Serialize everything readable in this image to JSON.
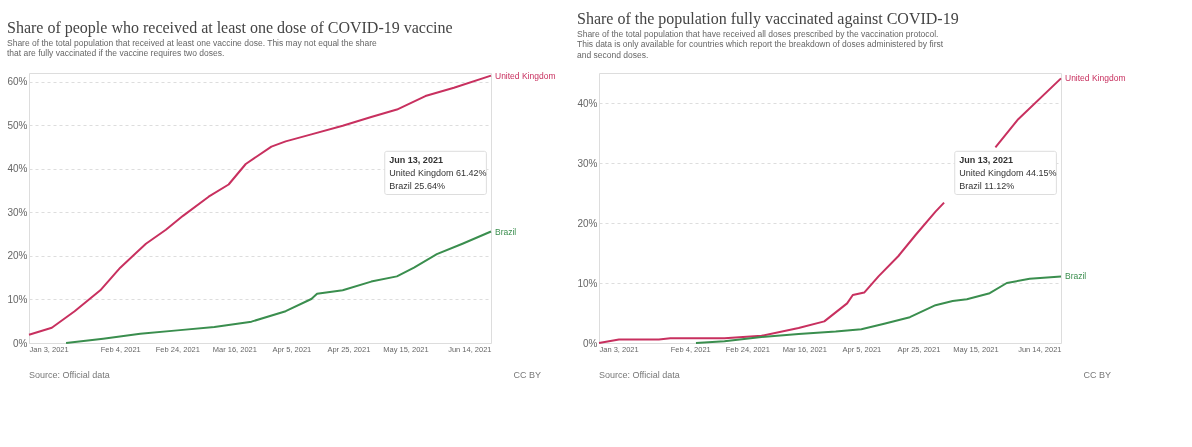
{
  "chart_data": [
    {
      "type": "line",
      "title": "Share of people who received at least one dose of COVID-19 vaccine",
      "subtitle": "Share of the total population that received at least one vaccine dose. This may not equal the share that are fully vaccinated if the vaccine requires two doses.",
      "series": [
        {
          "name": "United Kingdom",
          "color": "#c8305f",
          "x": [
            "2021-01-03",
            "2021-01-11",
            "2021-01-19",
            "2021-01-28",
            "2021-02-04",
            "2021-02-13",
            "2021-02-20",
            "2021-02-26",
            "2021-03-07",
            "2021-03-14",
            "2021-03-20",
            "2021-03-29",
            "2021-04-03",
            "2021-04-12",
            "2021-04-23",
            "2021-05-03",
            "2021-05-12",
            "2021-05-22",
            "2021-06-01",
            "2021-06-14"
          ],
          "values": [
            1.9,
            3.5,
            7.3,
            12.1,
            17.3,
            22.8,
            26,
            29.2,
            33.6,
            36.4,
            41.1,
            45.1,
            46.3,
            47.9,
            49.9,
            51.9,
            53.6,
            56.7,
            58.6,
            61.4
          ]
        },
        {
          "name": "Brazil",
          "color": "#3a8e4e",
          "x": [
            "2021-01-16",
            "2021-01-29",
            "2021-02-11",
            "2021-02-24",
            "2021-03-09",
            "2021-03-22",
            "2021-04-03",
            "2021-04-12",
            "2021-04-14",
            "2021-04-23",
            "2021-05-03",
            "2021-05-12",
            "2021-05-18",
            "2021-05-26",
            "2021-06-04",
            "2021-06-14"
          ],
          "values": [
            0,
            1.0,
            2.1,
            2.9,
            3.7,
            4.9,
            7.3,
            10.1,
            11.3,
            12.1,
            14.1,
            15.3,
            17.3,
            20.4,
            22.8,
            25.6
          ]
        }
      ],
      "xlim": [
        "2021-01-03",
        "2021-06-14"
      ],
      "xticks": [
        {
          "value": "2021-01-03",
          "label": "Jan 3, 2021"
        },
        {
          "value": "2021-02-04",
          "label": "Feb 4, 2021"
        },
        {
          "value": "2021-02-24",
          "label": "Feb 24, 2021"
        },
        {
          "value": "2021-03-16",
          "label": "Mar 16, 2021"
        },
        {
          "value": "2021-04-05",
          "label": "Apr 5, 2021"
        },
        {
          "value": "2021-04-25",
          "label": "Apr 25, 2021"
        },
        {
          "value": "2021-05-15",
          "label": "May 15, 2021"
        },
        {
          "value": "2021-06-14",
          "label": "Jun 14, 2021"
        }
      ],
      "ylim": [
        0,
        62
      ],
      "yticks": [
        {
          "value": 0,
          "label": "0%"
        },
        {
          "value": 10,
          "label": "10%"
        },
        {
          "value": 20,
          "label": "20%"
        },
        {
          "value": 30,
          "label": "30%"
        },
        {
          "value": 40,
          "label": "40%"
        },
        {
          "value": 50,
          "label": "50%"
        },
        {
          "value": 60,
          "label": "60%"
        }
      ],
      "grid": "y",
      "legend": false,
      "marker": "none",
      "line_style": "solid",
      "annotations": [
        "Jun 13, 2021",
        "United Kingdom 61.42%",
        "Brazil 25.64%",
        "Source: Official data",
        "CC BY"
      ]
    },
    {
      "type": "line",
      "title": "Share of the population fully vaccinated against COVID-19",
      "subtitle": "Share of the total population that have received all doses prescribed by the vaccination protocol. This data is only available for countries which report the breakdown of doses administered by first and second doses.",
      "series": [
        {
          "name": "United Kingdom",
          "color": "#c8305f",
          "x": [
            "2021-01-03",
            "2021-01-10",
            "2021-01-24",
            "2021-01-28",
            "2021-02-16",
            "2021-03-01",
            "2021-03-14",
            "2021-03-23",
            "2021-03-31",
            "2021-04-02",
            "2021-04-06",
            "2021-04-11",
            "2021-04-18",
            "2021-04-24",
            "2021-05-01",
            "2021-05-04",
            "2021-05-10",
            "2021-05-22",
            "2021-05-30",
            "2021-06-14"
          ],
          "values": [
            0,
            0.6,
            0.6,
            0.8,
            0.8,
            1.2,
            2.5,
            3.6,
            6.6,
            8.0,
            8.4,
            11.1,
            14.5,
            18.0,
            21.9,
            23.4,
            null,
            32.6,
            37.3,
            44.1
          ]
        },
        {
          "name": "Brazil",
          "color": "#3a8e4e",
          "x": [
            "2021-02-06",
            "2021-02-16",
            "2021-03-01",
            "2021-03-14",
            "2021-03-27",
            "2021-04-05",
            "2021-04-13",
            "2021-04-22",
            "2021-05-01",
            "2021-05-07",
            "2021-05-12",
            "2021-05-20",
            "2021-05-26",
            "2021-06-03",
            "2021-06-14"
          ],
          "values": [
            0,
            0.3,
            1.0,
            1.5,
            1.9,
            2.3,
            3.2,
            4.3,
            6.3,
            7.0,
            7.3,
            8.3,
            10.0,
            10.7,
            11.1
          ]
        }
      ],
      "xlim": [
        "2021-01-03",
        "2021-06-14"
      ],
      "xticks": [
        {
          "value": "2021-01-03",
          "label": "Jan 3, 2021"
        },
        {
          "value": "2021-02-04",
          "label": "Feb 4, 2021"
        },
        {
          "value": "2021-02-24",
          "label": "Feb 24, 2021"
        },
        {
          "value": "2021-03-16",
          "label": "Mar 16, 2021"
        },
        {
          "value": "2021-04-05",
          "label": "Apr 5, 2021"
        },
        {
          "value": "2021-04-25",
          "label": "Apr 25, 2021"
        },
        {
          "value": "2021-05-15",
          "label": "May 15, 2021"
        },
        {
          "value": "2021-06-14",
          "label": "Jun 14, 2021"
        }
      ],
      "ylim": [
        0,
        45
      ],
      "yticks": [
        {
          "value": 0,
          "label": "0%"
        },
        {
          "value": 10,
          "label": "10%"
        },
        {
          "value": 20,
          "label": "20%"
        },
        {
          "value": 30,
          "label": "30%"
        },
        {
          "value": 40,
          "label": "40%"
        }
      ],
      "grid": "y",
      "legend": false,
      "marker": "none",
      "line_style": "solid",
      "annotations": [
        "Jun 13, 2021",
        "United Kingdom 44.15%",
        "Brazil 11.12%",
        "Source: Official data",
        "CC BY"
      ]
    }
  ]
}
